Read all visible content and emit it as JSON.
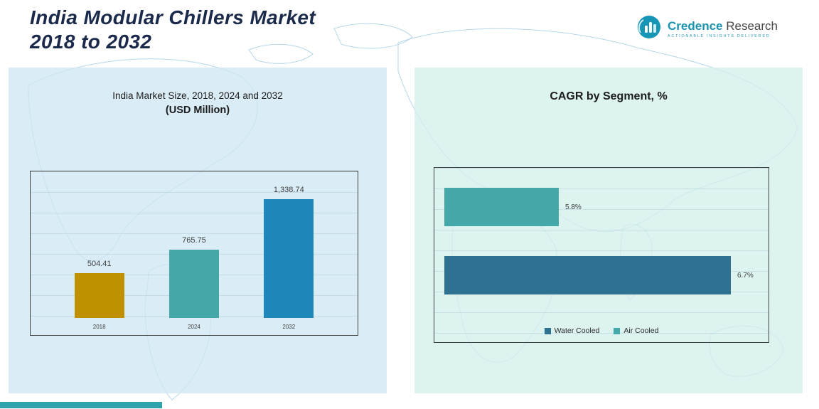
{
  "header": {
    "title_line1": "India Modular Chillers Market",
    "title_line2": "2018 to 2032",
    "logo": {
      "brand_primary": "Credence",
      "brand_secondary": " Research",
      "tagline": "Actionable Insights Delivered"
    }
  },
  "market_size": {
    "title_line1": "India Market Size, 2018, 2024 and 2032",
    "title_line2": "(USD Million)"
  },
  "cagr": {
    "title": "CAGR by Segment, %"
  },
  "chart_data": [
    {
      "type": "bar",
      "title": "India Market Size, 2018, 2024 and 2032 (USD Million)",
      "categories": [
        "2018",
        "2024",
        "2032"
      ],
      "values": [
        504.41,
        765.75,
        1338.74
      ],
      "value_labels": [
        "504.41",
        "765.75",
        "1,338.74"
      ],
      "bar_colors": [
        "#bf9000",
        "#45a8a8",
        "#1f86ba"
      ],
      "ylim": [
        0,
        1600
      ],
      "grid": true,
      "legend_position": "none"
    },
    {
      "type": "bar",
      "orientation": "horizontal",
      "title": "CAGR by Segment, %",
      "categories": [
        "Air Cooled",
        "Water Cooled"
      ],
      "values": [
        5.8,
        6.7
      ],
      "value_labels": [
        "5.8%",
        "6.7%"
      ],
      "bar_colors": [
        "#45a8a8",
        "#2e7191"
      ],
      "xlim": [
        5.2,
        6.8
      ],
      "grid": false,
      "legend_position": "bottom",
      "legend": [
        {
          "label": "Water Cooled",
          "color": "#2e7191"
        },
        {
          "label": "Air Cooled",
          "color": "#45a8a8"
        }
      ]
    }
  ]
}
